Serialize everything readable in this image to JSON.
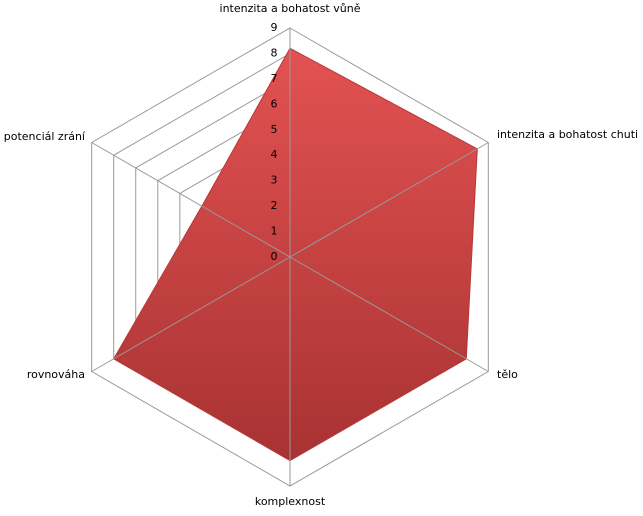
{
  "chart_data": {
    "type": "radar",
    "categories": [
      "intenzita a bohatost  vůně",
      "intenzita a bohatost  chuti",
      "tělo",
      "komplexnost",
      "rovnováha",
      "potenciál zrání"
    ],
    "values": [
      8.2,
      8.5,
      8,
      8,
      8,
      4
    ],
    "color": "#d44545",
    "rlim": [
      0,
      9
    ],
    "rticks": [
      0,
      1,
      2,
      3,
      4,
      5,
      6,
      7,
      8,
      9
    ],
    "grid": true
  }
}
